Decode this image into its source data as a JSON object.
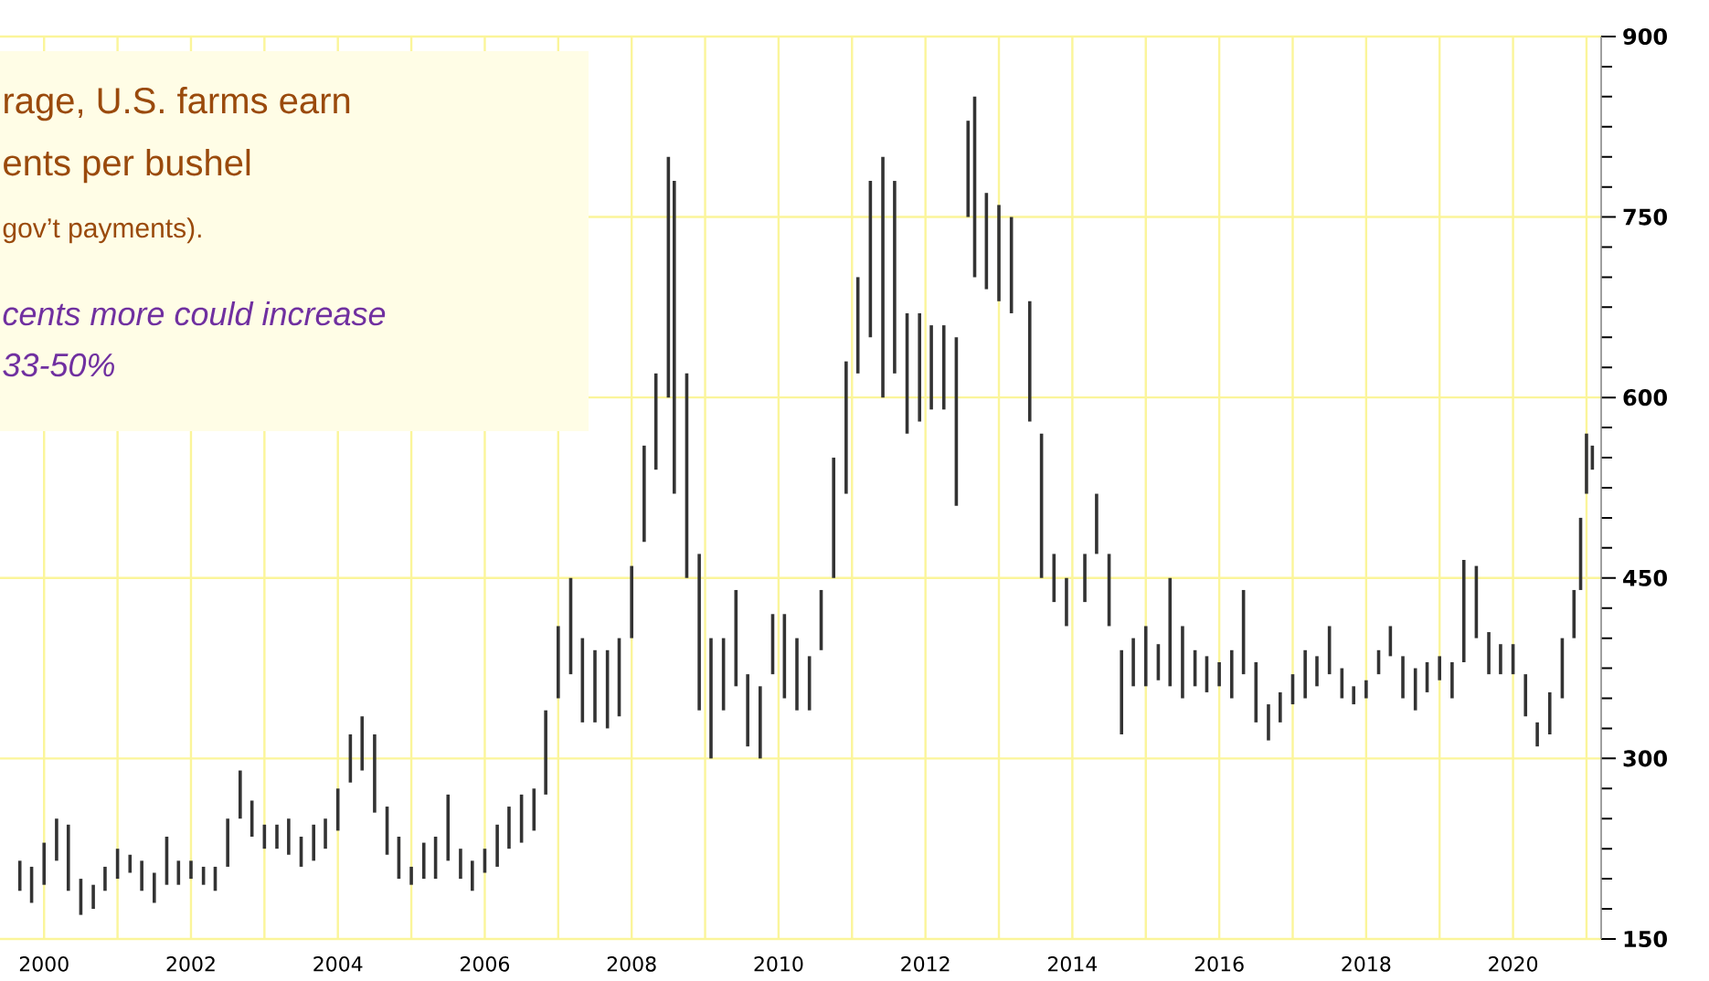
{
  "chart_data": {
    "type": "bar",
    "color": "#333333",
    "grid": true,
    "annotations": [
      "rage, U.S. farms earn",
      "ents per bushel",
      "gov’t payments).",
      "cents more could increase",
      "33-50%"
    ],
    "xlim": [
      1999.4,
      2021.2
    ],
    "ylim": [
      150,
      900
    ],
    "xticks": [
      2000,
      {
        "value": 2001,
        "label": null
      },
      2002,
      {
        "value": 2003,
        "label": null
      },
      2004,
      {
        "value": 2005,
        "label": null
      },
      2006,
      {
        "value": 2007,
        "label": null
      },
      2008,
      {
        "value": 2009,
        "label": null
      },
      2010,
      {
        "value": 2011,
        "label": null
      },
      2012,
      {
        "value": 2013,
        "label": null
      },
      2014,
      {
        "value": 2015,
        "label": null
      },
      2016,
      {
        "value": 2017,
        "label": null
      },
      2018,
      {
        "value": 2019,
        "label": null
      },
      2020,
      {
        "value": 2021,
        "label": null
      }
    ],
    "yticks": [
      150,
      {
        "value": 175,
        "label": null
      },
      {
        "value": 200,
        "label": null
      },
      {
        "value": 225,
        "label": null
      },
      {
        "value": 250,
        "label": null
      },
      {
        "value": 275,
        "label": null
      },
      300,
      {
        "value": 325,
        "label": null
      },
      {
        "value": 350,
        "label": null
      },
      {
        "value": 375,
        "label": null
      },
      {
        "value": 400,
        "label": null
      },
      {
        "value": 425,
        "label": null
      },
      450,
      {
        "value": 475,
        "label": null
      },
      {
        "value": 500,
        "label": null
      },
      {
        "value": 525,
        "label": null
      },
      {
        "value": 550,
        "label": null
      },
      {
        "value": 575,
        "label": null
      },
      600,
      {
        "value": 625,
        "label": null
      },
      {
        "value": 650,
        "label": null
      },
      {
        "value": 675,
        "label": null
      },
      {
        "value": 700,
        "label": null
      },
      {
        "value": 725,
        "label": null
      },
      750,
      {
        "value": 775,
        "label": null
      },
      {
        "value": 800,
        "label": null
      },
      {
        "value": 825,
        "label": null
      },
      {
        "value": 850,
        "label": null
      },
      {
        "value": 875,
        "label": null
      },
      900
    ],
    "x": [
      1999.67,
      1999.83,
      2000.0,
      2000.17,
      2000.33,
      2000.5,
      2000.67,
      2000.83,
      2001.0,
      2001.17,
      2001.33,
      2001.5,
      2001.67,
      2001.83,
      2002.0,
      2002.17,
      2002.33,
      2002.5,
      2002.67,
      2002.83,
      2003.0,
      2003.17,
      2003.33,
      2003.5,
      2003.67,
      2003.83,
      2004.0,
      2004.17,
      2004.33,
      2004.5,
      2004.67,
      2004.83,
      2005.0,
      2005.17,
      2005.33,
      2005.5,
      2005.67,
      2005.83,
      2006.0,
      2006.17,
      2006.33,
      2006.5,
      2006.67,
      2006.83,
      2007.0,
      2007.17,
      2007.33,
      2007.5,
      2007.67,
      2007.83,
      2008.0,
      2008.17,
      2008.33,
      2008.5,
      2008.58,
      2008.75,
      2008.92,
      2009.08,
      2009.25,
      2009.42,
      2009.58,
      2009.75,
      2009.92,
      2010.08,
      2010.25,
      2010.42,
      2010.58,
      2010.75,
      2010.92,
      2011.08,
      2011.25,
      2011.42,
      2011.58,
      2011.75,
      2011.92,
      2012.08,
      2012.25,
      2012.42,
      2012.58,
      2012.67,
      2012.83,
      2013.0,
      2013.17,
      2013.42,
      2013.58,
      2013.75,
      2013.92,
      2014.17,
      2014.33,
      2014.5,
      2014.67,
      2014.83,
      2015.0,
      2015.17,
      2015.33,
      2015.5,
      2015.67,
      2015.83,
      2016.0,
      2016.17,
      2016.33,
      2016.5,
      2016.67,
      2016.83,
      2017.0,
      2017.17,
      2017.33,
      2017.5,
      2017.67,
      2017.83,
      2018.0,
      2018.17,
      2018.33,
      2018.5,
      2018.67,
      2018.83,
      2019.0,
      2019.17,
      2019.33,
      2019.5,
      2019.67,
      2019.83,
      2020.0,
      2020.17,
      2020.33,
      2020.5,
      2020.67,
      2020.83,
      2020.92,
      2021.0,
      2021.08
    ],
    "base": [
      190,
      180,
      195,
      215,
      190,
      170,
      175,
      190,
      200,
      205,
      190,
      180,
      195,
      195,
      200,
      195,
      190,
      210,
      250,
      235,
      225,
      225,
      220,
      210,
      215,
      225,
      240,
      280,
      290,
      255,
      220,
      200,
      195,
      200,
      200,
      215,
      200,
      190,
      205,
      210,
      225,
      230,
      240,
      270,
      350,
      370,
      330,
      330,
      325,
      335,
      400,
      480,
      540,
      600,
      520,
      450,
      340,
      300,
      340,
      360,
      310,
      300,
      370,
      350,
      340,
      340,
      390,
      450,
      520,
      620,
      650,
      600,
      620,
      570,
      580,
      590,
      590,
      510,
      750,
      700,
      690,
      680,
      670,
      580,
      450,
      430,
      410,
      430,
      470,
      410,
      320,
      360,
      360,
      365,
      360,
      350,
      360,
      355,
      360,
      350,
      370,
      330,
      315,
      330,
      345,
      350,
      360,
      370,
      350,
      345,
      350,
      370,
      385,
      350,
      340,
      355,
      365,
      350,
      380,
      400,
      370,
      370,
      370,
      335,
      310,
      320,
      350,
      400,
      440,
      520,
      540
    ],
    "values": [
      25,
      30,
      35,
      35,
      55,
      30,
      20,
      20,
      25,
      15,
      25,
      25,
      40,
      20,
      15,
      15,
      20,
      40,
      40,
      30,
      20,
      20,
      30,
      25,
      30,
      25,
      35,
      40,
      45,
      65,
      40,
      35,
      15,
      30,
      35,
      55,
      25,
      25,
      20,
      35,
      35,
      40,
      35,
      70,
      60,
      80,
      70,
      60,
      65,
      65,
      60,
      80,
      80,
      200,
      260,
      170,
      130,
      100,
      60,
      80,
      60,
      60,
      50,
      70,
      60,
      45,
      50,
      100,
      110,
      80,
      130,
      200,
      160,
      100,
      90,
      70,
      70,
      140,
      80,
      150,
      80,
      80,
      80,
      100,
      120,
      40,
      40,
      40,
      50,
      60,
      70,
      40,
      50,
      30,
      90,
      60,
      30,
      30,
      20,
      40,
      70,
      50,
      30,
      25,
      25,
      40,
      25,
      40,
      25,
      15,
      15,
      20,
      25,
      35,
      35,
      25,
      20,
      30,
      85,
      60,
      35,
      25,
      25,
      35,
      20,
      35,
      50,
      40,
      60,
      50,
      20
    ]
  }
}
